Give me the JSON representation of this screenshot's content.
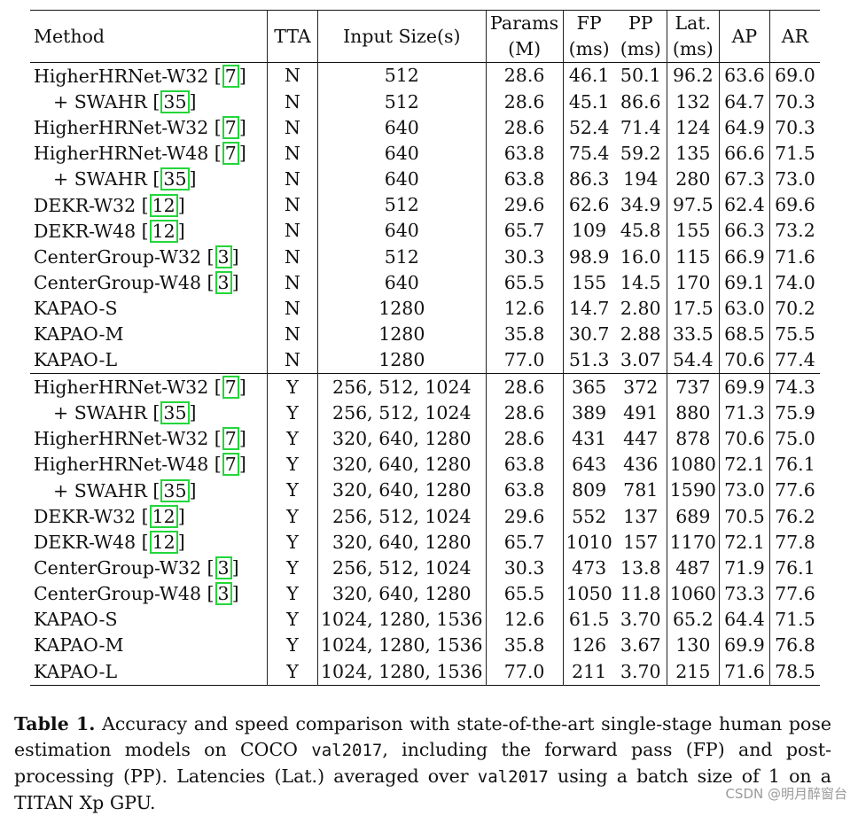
{
  "table": {
    "headers": [
      {
        "line1": "Method",
        "line2": ""
      },
      {
        "line1": "TTA",
        "line2": ""
      },
      {
        "line1": "Input Size(s)",
        "line2": ""
      },
      {
        "line1": "Params",
        "line2": "(M)"
      },
      {
        "line1": "FP",
        "line2": "(ms)"
      },
      {
        "line1": "PP",
        "line2": "(ms)"
      },
      {
        "line1": "Lat.",
        "line2": "(ms)"
      },
      {
        "line1": "AP",
        "line2": ""
      },
      {
        "line1": "AR",
        "line2": ""
      }
    ],
    "groups": [
      {
        "rows": [
          {
            "method": "HigherHRNet-W32",
            "cite": "7",
            "indent": false,
            "tta": "N",
            "input": "512",
            "params": "28.6",
            "fp": "46.1",
            "pp": "50.1",
            "lat": "96.2",
            "ap": "63.6",
            "ar": "69.0",
            "bold": []
          },
          {
            "method": "+ SWAHR",
            "cite": "35",
            "indent": true,
            "tta": "N",
            "input": "512",
            "params": "28.6",
            "fp": "45.1",
            "pp": "86.6",
            "lat": "132",
            "ap": "64.7",
            "ar": "70.3",
            "bold": []
          },
          {
            "method": "HigherHRNet-W32",
            "cite": "7",
            "indent": false,
            "tta": "N",
            "input": "640",
            "params": "28.6",
            "fp": "52.4",
            "pp": "71.4",
            "lat": "124",
            "ap": "64.9",
            "ar": "70.3",
            "bold": []
          },
          {
            "method": "HigherHRNet-W48",
            "cite": "7",
            "indent": false,
            "tta": "N",
            "input": "640",
            "params": "63.8",
            "fp": "75.4",
            "pp": "59.2",
            "lat": "135",
            "ap": "66.6",
            "ar": "71.5",
            "bold": []
          },
          {
            "method": "+ SWAHR",
            "cite": "35",
            "indent": true,
            "tta": "N",
            "input": "640",
            "params": "63.8",
            "fp": "86.3",
            "pp": "194",
            "lat": "280",
            "ap": "67.3",
            "ar": "73.0",
            "bold": []
          },
          {
            "method": "DEKR-W32",
            "cite": "12",
            "indent": false,
            "tta": "N",
            "input": "512",
            "params": "29.6",
            "fp": "62.6",
            "pp": "34.9",
            "lat": "97.5",
            "ap": "62.4",
            "ar": "69.6",
            "bold": []
          },
          {
            "method": "DEKR-W48",
            "cite": "12",
            "indent": false,
            "tta": "N",
            "input": "640",
            "params": "65.7",
            "fp": "109",
            "pp": "45.8",
            "lat": "155",
            "ap": "66.3",
            "ar": "73.2",
            "bold": []
          },
          {
            "method": "CenterGroup-W32",
            "cite": "3",
            "indent": false,
            "tta": "N",
            "input": "512",
            "params": "30.3",
            "fp": "98.9",
            "pp": "16.0",
            "lat": "115",
            "ap": "66.9",
            "ar": "71.6",
            "bold": []
          },
          {
            "method": "CenterGroup-W48",
            "cite": "3",
            "indent": false,
            "tta": "N",
            "input": "640",
            "params": "65.5",
            "fp": "155",
            "pp": "14.5",
            "lat": "170",
            "ap": "69.1",
            "ar": "74.0",
            "bold": []
          },
          {
            "method": "KAPAO-S",
            "cite": "",
            "indent": false,
            "tta": "N",
            "input": "1280",
            "params": "12.6",
            "fp": "14.7",
            "pp": "2.80",
            "lat": "17.5",
            "ap": "63.0",
            "ar": "70.2",
            "bold": [
              "params",
              "fp",
              "pp",
              "lat"
            ]
          },
          {
            "method": "KAPAO-M",
            "cite": "",
            "indent": false,
            "tta": "N",
            "input": "1280",
            "params": "35.8",
            "fp": "30.7",
            "pp": "2.88",
            "lat": "33.5",
            "ap": "68.5",
            "ar": "75.5",
            "bold": []
          },
          {
            "method": "KAPAO-L",
            "cite": "",
            "indent": false,
            "tta": "N",
            "input": "1280",
            "params": "77.0",
            "fp": "51.3",
            "pp": "3.07",
            "lat": "54.4",
            "ap": "70.6",
            "ar": "77.4",
            "bold": [
              "ap",
              "ar"
            ]
          }
        ]
      },
      {
        "rows": [
          {
            "method": "HigherHRNet-W32",
            "cite": "7",
            "indent": false,
            "tta": "Y",
            "input": "256, 512, 1024",
            "params": "28.6",
            "fp": "365",
            "pp": "372",
            "lat": "737",
            "ap": "69.9",
            "ar": "74.3",
            "bold": []
          },
          {
            "method": "+ SWAHR",
            "cite": "35",
            "indent": true,
            "tta": "Y",
            "input": "256, 512, 1024",
            "params": "28.6",
            "fp": "389",
            "pp": "491",
            "lat": "880",
            "ap": "71.3",
            "ar": "75.9",
            "bold": []
          },
          {
            "method": "HigherHRNet-W32",
            "cite": "7",
            "indent": false,
            "tta": "Y",
            "input": "320, 640, 1280",
            "params": "28.6",
            "fp": "431",
            "pp": "447",
            "lat": "878",
            "ap": "70.6",
            "ar": "75.0",
            "bold": []
          },
          {
            "method": "HigherHRNet-W48",
            "cite": "7",
            "indent": false,
            "tta": "Y",
            "input": "320, 640, 1280",
            "params": "63.8",
            "fp": "643",
            "pp": "436",
            "lat": "1080",
            "ap": "72.1",
            "ar": "76.1",
            "bold": []
          },
          {
            "method": "+ SWAHR",
            "cite": "35",
            "indent": true,
            "tta": "Y",
            "input": "320, 640, 1280",
            "params": "63.8",
            "fp": "809",
            "pp": "781",
            "lat": "1590",
            "ap": "73.0",
            "ar": "77.6",
            "bold": []
          },
          {
            "method": "DEKR-W32",
            "cite": "12",
            "indent": false,
            "tta": "Y",
            "input": "256, 512, 1024",
            "params": "29.6",
            "fp": "552",
            "pp": "137",
            "lat": "689",
            "ap": "70.5",
            "ar": "76.2",
            "bold": []
          },
          {
            "method": "DEKR-W48",
            "cite": "12",
            "indent": false,
            "tta": "Y",
            "input": "320, 640, 1280",
            "params": "65.7",
            "fp": "1010",
            "pp": "157",
            "lat": "1170",
            "ap": "72.1",
            "ar": "77.8",
            "bold": []
          },
          {
            "method": "CenterGroup-W32",
            "cite": "3",
            "indent": false,
            "tta": "Y",
            "input": "256, 512, 1024",
            "params": "30.3",
            "fp": "473",
            "pp": "13.8",
            "lat": "487",
            "ap": "71.9",
            "ar": "76.1",
            "bold": []
          },
          {
            "method": "CenterGroup-W48",
            "cite": "3",
            "indent": false,
            "tta": "Y",
            "input": "320, 640, 1280",
            "params": "65.5",
            "fp": "1050",
            "pp": "11.8",
            "lat": "1060",
            "ap": "73.3",
            "ar": "77.6",
            "bold": [
              "ap"
            ]
          },
          {
            "method": "KAPAO-S",
            "cite": "",
            "indent": false,
            "tta": "Y",
            "input": "1024, 1280, 1536",
            "params": "12.6",
            "fp": "61.5",
            "pp": "3.70",
            "lat": "65.2",
            "ap": "64.4",
            "ar": "71.5",
            "bold": [
              "params",
              "fp",
              "pp",
              "lat"
            ]
          },
          {
            "method": "KAPAO-M",
            "cite": "",
            "indent": false,
            "tta": "Y",
            "input": "1024, 1280, 1536",
            "params": "35.8",
            "fp": "126",
            "pp": "3.67",
            "lat": "130",
            "ap": "69.9",
            "ar": "76.8",
            "bold": []
          },
          {
            "method": "KAPAO-L",
            "cite": "",
            "indent": false,
            "tta": "Y",
            "input": "1024, 1280, 1536",
            "params": "77.0",
            "fp": "211",
            "pp": "3.70",
            "lat": "215",
            "ap": "71.6",
            "ar": "78.5",
            "bold": [
              "ar"
            ]
          }
        ]
      }
    ]
  },
  "caption": {
    "label": "Table 1.",
    "text_a": " Accuracy and speed comparison with state-of-the-art single-stage human pose estimation models on COCO ",
    "code_a": "val2017",
    "text_b": ", including the forward pass (FP) and post-processing (PP). Latencies (Lat.) averaged over ",
    "code_b": "val2017",
    "text_c": " using a batch size of 1 on a TITAN Xp GPU."
  },
  "watermark": "CSDN @明月醉窗台",
  "colors": {
    "citation_box": "#22d63a"
  }
}
